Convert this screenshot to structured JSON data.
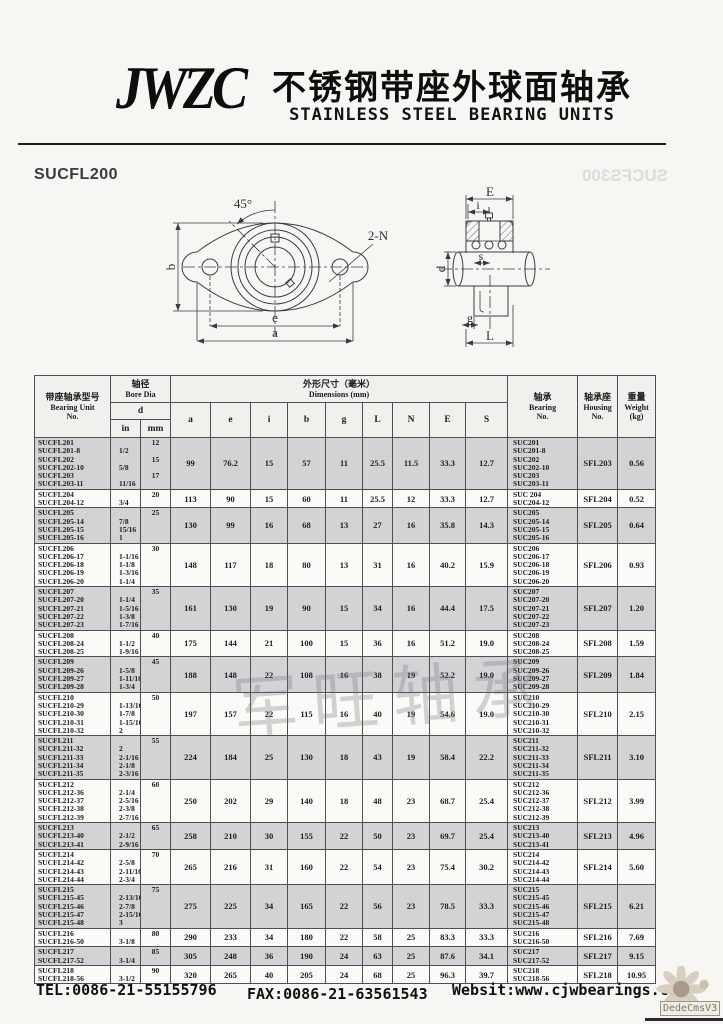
{
  "header": {
    "logo": "JWZC",
    "title_cn": "不锈钢带座外球面轴承",
    "title_en": "STAINLESS STEEL BEARING UNITS"
  },
  "series_label": "SUCFL200",
  "watermarks": {
    "ghost_reverse": "SUCFS300",
    "table_watermark": "军旺轴承",
    "cms_badge": "DedeCmsV3"
  },
  "diagram": {
    "front": {
      "angle": "45°",
      "b": "b",
      "e": "e",
      "a": "a",
      "n": "2-N"
    },
    "side": {
      "E": "E",
      "i": "i",
      "d": "d",
      "s": "s",
      "g": "g",
      "L": "L"
    }
  },
  "table": {
    "header": {
      "unit": {
        "cn": "带座轴承型号",
        "en1": "Bearing Unit",
        "en2": "No."
      },
      "bore": {
        "cn": "轴径",
        "en": "Bore Dia",
        "d": "d",
        "in": "in",
        "mm": "mm"
      },
      "dims": {
        "cn": "外形尺寸（毫米）",
        "en": "Dimensions (mm)",
        "cols": [
          "a",
          "e",
          "i",
          "b",
          "g",
          "L",
          "N",
          "E",
          "S"
        ]
      },
      "bearing": {
        "cn": "轴承",
        "en1": "Bearing",
        "en2": "No."
      },
      "housing": {
        "cn": "轴承座",
        "en1": "Housing",
        "en2": "No."
      },
      "weight": {
        "cn": "重量",
        "en1": "Weight",
        "en2": "(kg)"
      }
    },
    "groups": [
      {
        "shaded": true,
        "rows": [
          [
            "SUCFL201",
            "",
            "12"
          ],
          [
            "SUCFL201-8",
            "1/2",
            ""
          ],
          [
            "SUCFL202",
            "",
            "15"
          ],
          [
            "SUCFL202-10",
            "5/8",
            ""
          ],
          [
            "SUCFL203",
            "",
            "17"
          ],
          [
            "SUCFL203-11",
            "11/16",
            ""
          ]
        ],
        "dims": [
          "99",
          "76.2",
          "15",
          "57",
          "11",
          "25.5",
          "11.5",
          "33.3",
          "12.7"
        ],
        "bearings": [
          "SUC201",
          "SUC201-8",
          "SUC202",
          "SUC202-10",
          "SUC203",
          "SUC203-11"
        ],
        "housing": "SFL203",
        "weight": "0.56"
      },
      {
        "shaded": false,
        "rows": [
          [
            "SUCFL204",
            "",
            "20"
          ],
          [
            "SUCFL204-12",
            "3/4",
            ""
          ]
        ],
        "dims": [
          "113",
          "90",
          "15",
          "60",
          "11",
          "25.5",
          "12",
          "33.3",
          "12.7"
        ],
        "bearings": [
          "SUC 204",
          "SUC204-12"
        ],
        "housing": "SFL204",
        "weight": "0.52"
      },
      {
        "shaded": true,
        "rows": [
          [
            "SUCFL205",
            "",
            "25"
          ],
          [
            "SUCFL205-14",
            "7/8",
            ""
          ],
          [
            "SUCFL205-15",
            "15/16",
            ""
          ],
          [
            "SUCFL205-16",
            "1",
            ""
          ]
        ],
        "dims": [
          "130",
          "99",
          "16",
          "68",
          "13",
          "27",
          "16",
          "35.8",
          "14.3"
        ],
        "bearings": [
          "SUC205",
          "SUC205-14",
          "SUC205-15",
          "SUC205-16"
        ],
        "housing": "SFL205",
        "weight": "0.64"
      },
      {
        "shaded": false,
        "rows": [
          [
            "SUCFL206",
            "",
            "30"
          ],
          [
            "SUCFL206-17",
            "1-1/16",
            ""
          ],
          [
            "SUCFL206-18",
            "1-1/8",
            ""
          ],
          [
            "SUCFL206-19",
            "1-3/16",
            ""
          ],
          [
            "SUCFL206-20",
            "1-1/4",
            ""
          ]
        ],
        "dims": [
          "148",
          "117",
          "18",
          "80",
          "13",
          "31",
          "16",
          "40.2",
          "15.9"
        ],
        "bearings": [
          "SUC206",
          "SUC206-17",
          "SUC206-18",
          "SUC206-19",
          "SUC206-20"
        ],
        "housing": "SFL206",
        "weight": "0.93"
      },
      {
        "shaded": true,
        "rows": [
          [
            "SUCFL207",
            "",
            "35"
          ],
          [
            "SUCFL207-20",
            "1-1/4",
            ""
          ],
          [
            "SUCFL207-21",
            "1-5/16",
            ""
          ],
          [
            "SUCFL207-22",
            "1-3/8",
            ""
          ],
          [
            "SUCFL207-23",
            "1-7/16",
            ""
          ]
        ],
        "dims": [
          "161",
          "130",
          "19",
          "90",
          "15",
          "34",
          "16",
          "44.4",
          "17.5"
        ],
        "bearings": [
          "SUC207",
          "SUC207-20",
          "SUC207-21",
          "SUC207-22",
          "SUC207-23"
        ],
        "housing": "SFL207",
        "weight": "1.20"
      },
      {
        "shaded": false,
        "rows": [
          [
            "SUCFL208",
            "",
            "40"
          ],
          [
            "SUCFL208-24",
            "1-1/2",
            ""
          ],
          [
            "SUCFL208-25",
            "1-9/16",
            ""
          ]
        ],
        "dims": [
          "175",
          "144",
          "21",
          "100",
          "15",
          "36",
          "16",
          "51.2",
          "19.0"
        ],
        "bearings": [
          "SUC208",
          "SUC208-24",
          "SUC208-25"
        ],
        "housing": "SFL208",
        "weight": "1.59"
      },
      {
        "shaded": true,
        "rows": [
          [
            "SUCFL209",
            "",
            "45"
          ],
          [
            "SUCFL209-26",
            "1-5/8",
            ""
          ],
          [
            "SUCFL209-27",
            "1-11/16",
            ""
          ],
          [
            "SUCFL209-28",
            "1-3/4",
            ""
          ]
        ],
        "dims": [
          "188",
          "148",
          "22",
          "108",
          "16",
          "38",
          "19",
          "52.2",
          "19.0"
        ],
        "bearings": [
          "SUC209",
          "SUC209-26",
          "SUC209-27",
          "SUC209-28"
        ],
        "housing": "SFL209",
        "weight": "1.84"
      },
      {
        "shaded": false,
        "rows": [
          [
            "SUCFL210",
            "",
            "50"
          ],
          [
            "SUCFL210-29",
            "1-13/16",
            ""
          ],
          [
            "SUCFL210-30",
            "1-7/8",
            ""
          ],
          [
            "SUCFL210-31",
            "1-15/16",
            ""
          ],
          [
            "SUCFL210-32",
            "2",
            ""
          ]
        ],
        "dims": [
          "197",
          "157",
          "22",
          "115",
          "16",
          "40",
          "19",
          "54.6",
          "19.0"
        ],
        "bearings": [
          "SUC210",
          "SUC210-29",
          "SUC210-30",
          "SUC210-31",
          "SUC210-32"
        ],
        "housing": "SFL210",
        "weight": "2.15"
      },
      {
        "shaded": true,
        "rows": [
          [
            "SUCFL211",
            "",
            "55"
          ],
          [
            "SUCFL211-32",
            "2",
            ""
          ],
          [
            "SUCFL211-33",
            "2-1/16",
            ""
          ],
          [
            "SUCFL211-34",
            "2-1/8",
            ""
          ],
          [
            "SUCFL211-35",
            "2-3/16",
            ""
          ]
        ],
        "dims": [
          "224",
          "184",
          "25",
          "130",
          "18",
          "43",
          "19",
          "58.4",
          "22.2"
        ],
        "bearings": [
          "SUC211",
          "SUC211-32",
          "SUC211-33",
          "SUC211-34",
          "SUC211-35"
        ],
        "housing": "SFL211",
        "weight": "3.10"
      },
      {
        "shaded": false,
        "rows": [
          [
            "SUCFL212",
            "",
            "60"
          ],
          [
            "SUCFL212-36",
            "2-1/4",
            ""
          ],
          [
            "SUCFL212-37",
            "2-5/16",
            ""
          ],
          [
            "SUCFL212-38",
            "2-3/8",
            ""
          ],
          [
            "SUCFL212-39",
            "2-7/16",
            ""
          ]
        ],
        "dims": [
          "250",
          "202",
          "29",
          "140",
          "18",
          "48",
          "23",
          "68.7",
          "25.4"
        ],
        "bearings": [
          "SUC212",
          "SUC212-36",
          "SUC212-37",
          "SUC212-38",
          "SUC212-39"
        ],
        "housing": "SFL212",
        "weight": "3.99"
      },
      {
        "shaded": true,
        "rows": [
          [
            "SUCFL213",
            "",
            "65"
          ],
          [
            "SUCFL213-40",
            "2-1/2",
            ""
          ],
          [
            "SUCFL213-41",
            "2-9/16",
            ""
          ]
        ],
        "dims": [
          "258",
          "210",
          "30",
          "155",
          "22",
          "50",
          "23",
          "69.7",
          "25.4"
        ],
        "bearings": [
          "SUC213",
          "SUC213-40",
          "SUC213-41"
        ],
        "housing": "SFL213",
        "weight": "4.96"
      },
      {
        "shaded": false,
        "rows": [
          [
            "SUCFL214",
            "",
            "70"
          ],
          [
            "SUCFL214-42",
            "2-5/8",
            ""
          ],
          [
            "SUCFL214-43",
            "2-11/16",
            ""
          ],
          [
            "SUCFL214-44",
            "2-3/4",
            ""
          ]
        ],
        "dims": [
          "265",
          "216",
          "31",
          "160",
          "22",
          "54",
          "23",
          "75.4",
          "30.2"
        ],
        "bearings": [
          "SUC214",
          "SUC214-42",
          "SUC214-43",
          "SUC214-44"
        ],
        "housing": "SFL214",
        "weight": "5.60"
      },
      {
        "shaded": true,
        "rows": [
          [
            "SUCFL215",
            "",
            "75"
          ],
          [
            "SUCFL215-45",
            "2-13/16",
            ""
          ],
          [
            "SUCFL215-46",
            "2-7/8",
            ""
          ],
          [
            "SUCFL215-47",
            "2-15/16",
            ""
          ],
          [
            "SUCFL215-48",
            "3",
            ""
          ]
        ],
        "dims": [
          "275",
          "225",
          "34",
          "165",
          "22",
          "56",
          "23",
          "78.5",
          "33.3"
        ],
        "bearings": [
          "SUC215",
          "SUC215-45",
          "SUC215-46",
          "SUC215-47",
          "SUC215-48"
        ],
        "housing": "SFL215",
        "weight": "6.21"
      },
      {
        "shaded": false,
        "rows": [
          [
            "SUCFL216",
            "",
            "80"
          ],
          [
            "SUCFL216-50",
            "3-1/8",
            ""
          ]
        ],
        "dims": [
          "290",
          "233",
          "34",
          "180",
          "22",
          "58",
          "25",
          "83.3",
          "33.3"
        ],
        "bearings": [
          "SUC216",
          "SUC216-50"
        ],
        "housing": "SFL216",
        "weight": "7.69"
      },
      {
        "shaded": true,
        "rows": [
          [
            "SUCFL217",
            "",
            "85"
          ],
          [
            "SUCFL217-52",
            "3-1/4",
            ""
          ]
        ],
        "dims": [
          "305",
          "248",
          "36",
          "190",
          "24",
          "63",
          "25",
          "87.6",
          "34.1"
        ],
        "bearings": [
          "SUC217",
          "SUC217-52"
        ],
        "housing": "SFL217",
        "weight": "9.15"
      },
      {
        "shaded": false,
        "rows": [
          [
            "SUCFL218",
            "",
            "90"
          ],
          [
            "SUCFL218-56",
            "3-1/2",
            ""
          ]
        ],
        "dims": [
          "320",
          "265",
          "40",
          "205",
          "24",
          "68",
          "25",
          "96.3",
          "39.7"
        ],
        "bearings": [
          "SUC218",
          "SUC218-56"
        ],
        "housing": "SFL218",
        "weight": "10.95"
      }
    ]
  },
  "footer": {
    "tel": "TEL:0086-21-55155796",
    "fax": "FAX:0086-21-63561543",
    "web": "Websit:www.cjwbearings.cn"
  }
}
